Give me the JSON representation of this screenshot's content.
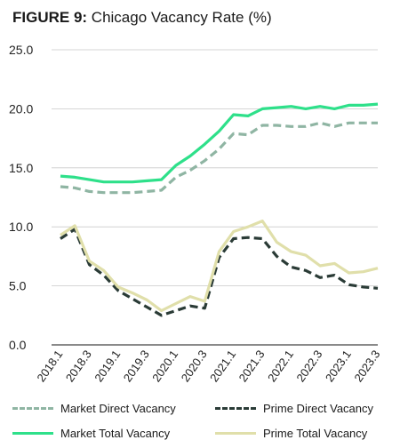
{
  "title": {
    "prefix": "FIGURE 9:",
    "text": "Chicago Vacancy Rate (%)"
  },
  "chart_data": {
    "type": "line",
    "title": "FIGURE 9: Chicago Vacancy Rate (%)",
    "xlabel": "",
    "ylabel": "",
    "ylim": [
      0,
      25
    ],
    "yticks": [
      "0.0",
      "5.0",
      "10.0",
      "15.0",
      "20.0",
      "25.0"
    ],
    "grid": "horizontal",
    "legend_position": "bottom",
    "categories": [
      "2018.1",
      "2018.2",
      "2018.3",
      "2018.4",
      "2019.1",
      "2019.2",
      "2019.3",
      "2019.4",
      "2020.1",
      "2020.2",
      "2020.3",
      "2020.4",
      "2021.1",
      "2021.2",
      "2021.3",
      "2021.4",
      "2022.1",
      "2022.2",
      "2022.3",
      "2022.4",
      "2023.1",
      "2023.2",
      "2023.3"
    ],
    "x_tick_labels": [
      "2018.1",
      "2018.3",
      "2019.1",
      "2019.3",
      "2020.1",
      "2020.3",
      "2021.1",
      "2021.3",
      "2022.1",
      "2022.3",
      "2023.1",
      "2023.3"
    ],
    "series": [
      {
        "name": "Market Direct Vacancy",
        "color": "#8fb5a3",
        "style": "dashed",
        "values": [
          13.4,
          13.3,
          13.0,
          12.9,
          12.9,
          12.9,
          13.0,
          13.1,
          14.2,
          14.8,
          15.6,
          16.6,
          17.9,
          17.8,
          18.6,
          18.6,
          18.5,
          18.5,
          18.8,
          18.5,
          18.8,
          18.8,
          18.8
        ]
      },
      {
        "name": "Prime Direct Vacancy",
        "color": "#2a3b36",
        "style": "dashed",
        "values": [
          9.0,
          9.8,
          6.8,
          5.9,
          4.6,
          3.9,
          3.2,
          2.5,
          2.9,
          3.3,
          3.1,
          7.4,
          9.0,
          9.1,
          9.0,
          7.5,
          6.6,
          6.3,
          5.7,
          5.9,
          5.1,
          4.9,
          4.8
        ]
      },
      {
        "name": "Market Total Vacancy",
        "color": "#2ee08a",
        "style": "solid",
        "values": [
          14.3,
          14.2,
          14.0,
          13.8,
          13.8,
          13.8,
          13.9,
          14.0,
          15.2,
          16.0,
          17.0,
          18.1,
          19.5,
          19.4,
          20.0,
          20.1,
          20.2,
          20.0,
          20.2,
          20.0,
          20.3,
          20.3,
          20.4
        ]
      },
      {
        "name": "Prime Total Vacancy",
        "color": "#e0dfaa",
        "style": "solid",
        "values": [
          9.3,
          10.1,
          7.1,
          6.3,
          4.9,
          4.4,
          3.8,
          2.9,
          3.5,
          4.1,
          3.7,
          7.9,
          9.6,
          10.0,
          10.5,
          8.7,
          7.9,
          7.6,
          6.7,
          6.9,
          6.1,
          6.2,
          6.5
        ]
      }
    ]
  },
  "legend": [
    {
      "label": "Market Direct Vacancy",
      "color": "#8fb5a3",
      "style": "dashed"
    },
    {
      "label": "Prime Direct Vacancy",
      "color": "#2a3b36",
      "style": "dashed"
    },
    {
      "label": "Market Total Vacancy",
      "color": "#2ee08a",
      "style": "solid"
    },
    {
      "label": "Prime Total Vacancy",
      "color": "#e0dfaa",
      "style": "solid"
    }
  ]
}
